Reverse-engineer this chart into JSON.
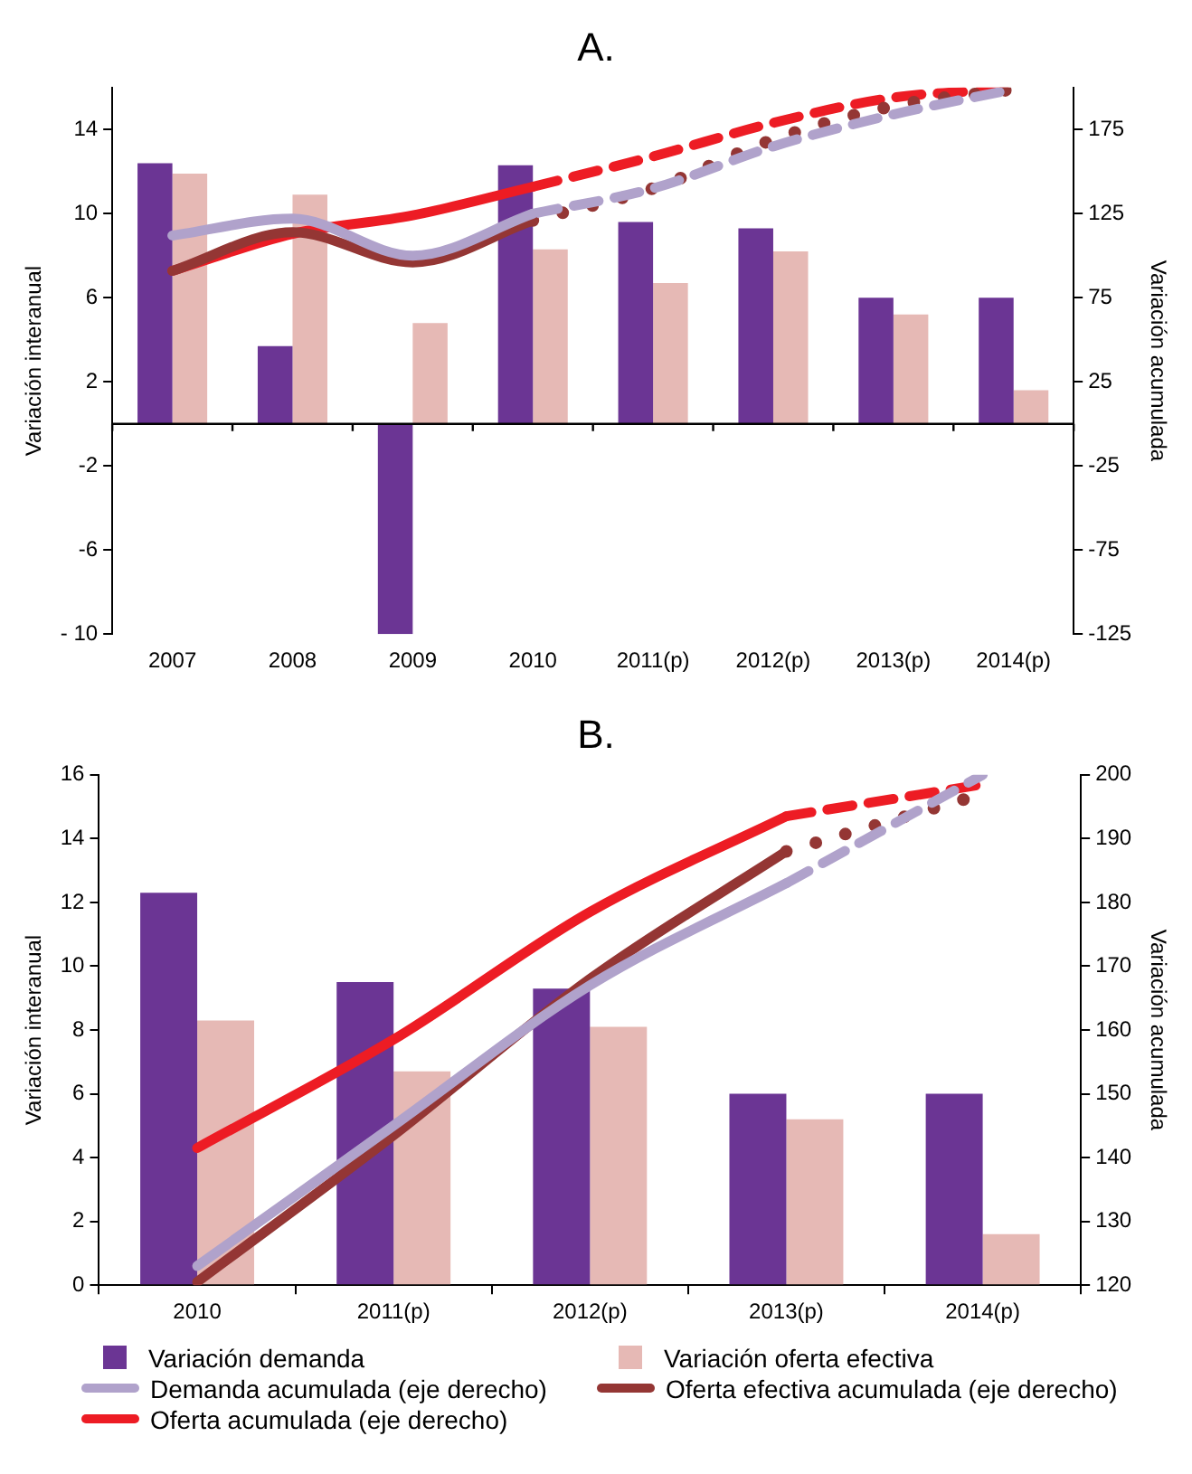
{
  "chart_data": [
    {
      "type": "bar",
      "title": "A.",
      "ylabel": "Variación interanual",
      "y2label": "Variación acumulada",
      "categories": [
        "2007",
        "2008",
        "2009",
        "2010",
        "2011(p)",
        "2012(p)",
        "2013(p)",
        "2014(p)"
      ],
      "ylim": [
        -10,
        16
      ],
      "yticks": [
        14,
        10,
        6,
        2,
        -2,
        -6,
        {
          "value": -10,
          "label": "- 10"
        }
      ],
      "y2lim": [
        -125,
        200
      ],
      "y2ticks": [
        175,
        125,
        75,
        25,
        -25,
        -75,
        -125
      ],
      "grid": false,
      "legend": false,
      "series": [
        {
          "color": "#6b3594",
          "values": [
            12.4,
            3.7,
            -10,
            12.3,
            9.6,
            9.3,
            6.0,
            6.0
          ]
        },
        {
          "color": "#e6b9b5",
          "values": [
            11.9,
            10.9,
            4.8,
            8.3,
            6.7,
            8.2,
            5.2,
            1.6
          ]
        },
        {
          "type": "line",
          "axis": "y2",
          "color": "#b0a2cb",
          "line_style": "solid",
          "values": [
            112,
            122,
            100,
            125,
            null,
            null,
            null,
            null
          ]
        },
        {
          "type": "line",
          "axis": "y2",
          "color": "#943634",
          "line_style": "solid",
          "values": [
            91,
            114,
            96,
            121,
            null,
            null,
            null,
            null
          ]
        },
        {
          "type": "line",
          "axis": "y2",
          "color": "#ed1c24",
          "line_style": "solid",
          "values": [
            91,
            113,
            124,
            141,
            null,
            null,
            null,
            null
          ]
        },
        {
          "type": "line",
          "axis": "y2",
          "color": "#b0a2cb",
          "line_style": "dashed",
          "values": [
            null,
            null,
            null,
            125,
            140,
            165,
            184,
            199
          ]
        },
        {
          "type": "line",
          "axis": "y2",
          "color": "#943634",
          "line_style": "dotted",
          "values": [
            null,
            null,
            null,
            121,
            140,
            169,
            189,
            199
          ]
        },
        {
          "type": "line",
          "axis": "y2",
          "color": "#ed1c24",
          "line_style": "dashed",
          "values": [
            null,
            null,
            null,
            141,
            159,
            179,
            194,
            199
          ]
        }
      ]
    },
    {
      "type": "bar",
      "title": "B.",
      "ylabel": "Variación interanual",
      "y2label": "Variación acumulada",
      "categories": [
        "2010",
        "2011(p)",
        "2012(p)",
        "2013(p)",
        "2014(p)"
      ],
      "ylim": [
        0,
        16
      ],
      "yticks": [
        0,
        2,
        4,
        6,
        8,
        10,
        12,
        14,
        16
      ],
      "y2lim": [
        120,
        200
      ],
      "y2ticks": [
        120,
        130,
        140,
        150,
        160,
        170,
        180,
        190,
        200
      ],
      "grid": false,
      "legend": "bottom",
      "series": [
        {
          "name": "Variación demanda",
          "color": "#6b3594",
          "values": [
            12.3,
            9.5,
            9.3,
            6.0,
            6.0
          ]
        },
        {
          "name": "Variación oferta efectiva",
          "color": "#e6b9b5",
          "values": [
            8.3,
            6.7,
            8.1,
            5.2,
            1.6
          ]
        },
        {
          "type": "line",
          "axis": "y2",
          "name": "Demanda acumulada (eje derecho)",
          "color": "#b0a2cb",
          "line_style": "solid",
          "values": [
            123,
            145,
            167,
            183,
            null
          ]
        },
        {
          "type": "line",
          "axis": "y2",
          "name": "Oferta efectiva acumulada (eje derecho)",
          "color": "#943634",
          "line_style": "solid",
          "values": [
            120.5,
            143.5,
            168,
            188,
            null
          ]
        },
        {
          "type": "line",
          "axis": "y2",
          "name": "Oferta acumulada (eje derecho)",
          "color": "#ed1c24",
          "line_style": "solid",
          "values": [
            141.5,
            158.5,
            178.5,
            193.5,
            null
          ]
        },
        {
          "type": "line",
          "axis": "y2",
          "color": "#b0a2cb",
          "line_style": "dashed",
          "values": [
            null,
            null,
            null,
            183,
            200
          ]
        },
        {
          "type": "line",
          "axis": "y2",
          "color": "#943634",
          "line_style": "dotted",
          "values": [
            null,
            null,
            null,
            188,
            197
          ]
        },
        {
          "type": "line",
          "axis": "y2",
          "color": "#ed1c24",
          "line_style": "dashed",
          "values": [
            null,
            null,
            null,
            193.5,
            198.5
          ]
        }
      ]
    }
  ]
}
